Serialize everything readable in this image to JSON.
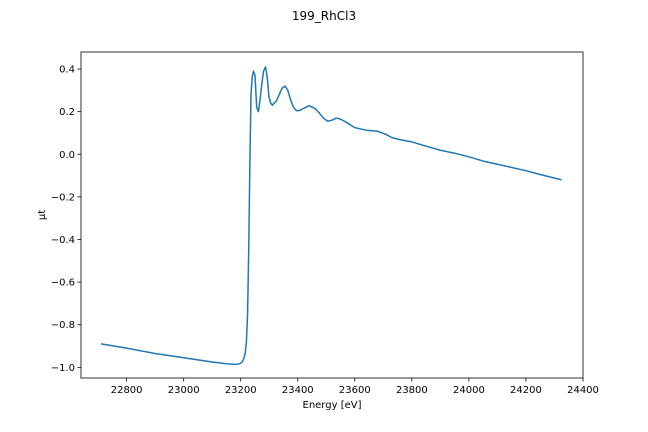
{
  "chart_data": {
    "type": "line",
    "title": "199_RhCl3",
    "xlabel": "Energy [eV]",
    "ylabel": "μt",
    "xlim": [
      22640,
      24400
    ],
    "ylim": [
      -1.05,
      0.48
    ],
    "grid": false,
    "x_ticks": [
      22800,
      23000,
      23200,
      23400,
      23600,
      23800,
      24000,
      24200,
      24400
    ],
    "y_ticks": [
      -1.0,
      -0.8,
      -0.6,
      -0.4,
      -0.2,
      0.0,
      0.2,
      0.4
    ],
    "series": [
      {
        "color": "#1f77b4",
        "x": [
          22710,
          22800,
          22900,
          23000,
          23100,
          23150,
          23180,
          23195,
          23205,
          23212,
          23216,
          23220,
          23224,
          23228,
          23232,
          23236,
          23240,
          23245,
          23250,
          23256,
          23262,
          23268,
          23274,
          23280,
          23287,
          23293,
          23299,
          23305,
          23311,
          23317,
          23325,
          23335,
          23345,
          23355,
          23365,
          23375,
          23385,
          23395,
          23405,
          23420,
          23440,
          23460,
          23475,
          23490,
          23505,
          23520,
          23535,
          23550,
          23570,
          23600,
          23640,
          23680,
          23710,
          23730,
          23760,
          23800,
          23850,
          23900,
          23950,
          24000,
          24050,
          24100,
          24150,
          24200,
          24250,
          24325
        ],
        "y": [
          -0.89,
          -0.91,
          -0.935,
          -0.955,
          -0.975,
          -0.983,
          -0.986,
          -0.984,
          -0.975,
          -0.955,
          -0.93,
          -0.88,
          -0.75,
          -0.45,
          -0.05,
          0.28,
          0.36,
          0.39,
          0.37,
          0.22,
          0.2,
          0.26,
          0.33,
          0.39,
          0.41,
          0.36,
          0.27,
          0.24,
          0.23,
          0.24,
          0.25,
          0.28,
          0.31,
          0.32,
          0.3,
          0.255,
          0.22,
          0.205,
          0.205,
          0.215,
          0.228,
          0.215,
          0.195,
          0.17,
          0.155,
          0.16,
          0.17,
          0.165,
          0.15,
          0.125,
          0.113,
          0.108,
          0.093,
          0.078,
          0.068,
          0.058,
          0.038,
          0.019,
          0.005,
          -0.012,
          -0.032,
          -0.047,
          -0.062,
          -0.077,
          -0.095,
          -0.12
        ]
      }
    ]
  }
}
